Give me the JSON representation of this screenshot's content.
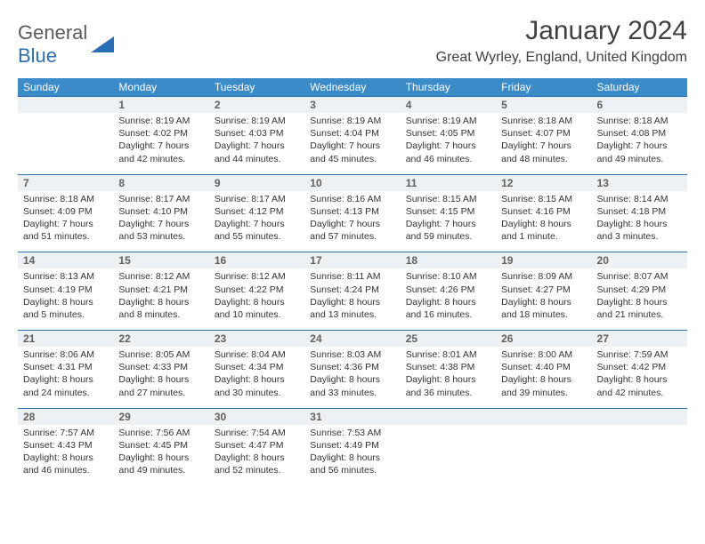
{
  "brand": {
    "part1": "General",
    "part2": "Blue"
  },
  "title": "January 2024",
  "location": "Great Wyrley, England, United Kingdom",
  "colors": {
    "header_bg": "#3b8bc9",
    "header_text": "#ffffff",
    "daynum_bg": "#eef1f3",
    "row_border": "#2a6fb5",
    "body_text": "#333333",
    "title_text": "#404040",
    "logo_gray": "#5a5a5a",
    "logo_blue": "#2a6fb5",
    "page_bg": "#ffffff"
  },
  "typography": {
    "month_title_fontsize": 30,
    "location_fontsize": 16,
    "weekday_fontsize": 12,
    "daynum_fontsize": 12,
    "cell_fontsize": 10.5
  },
  "weekdays": [
    "Sunday",
    "Monday",
    "Tuesday",
    "Wednesday",
    "Thursday",
    "Friday",
    "Saturday"
  ],
  "weeks": [
    [
      null,
      {
        "n": "1",
        "sr": "Sunrise: 8:19 AM",
        "ss": "Sunset: 4:02 PM",
        "d1": "Daylight: 7 hours",
        "d2": "and 42 minutes."
      },
      {
        "n": "2",
        "sr": "Sunrise: 8:19 AM",
        "ss": "Sunset: 4:03 PM",
        "d1": "Daylight: 7 hours",
        "d2": "and 44 minutes."
      },
      {
        "n": "3",
        "sr": "Sunrise: 8:19 AM",
        "ss": "Sunset: 4:04 PM",
        "d1": "Daylight: 7 hours",
        "d2": "and 45 minutes."
      },
      {
        "n": "4",
        "sr": "Sunrise: 8:19 AM",
        "ss": "Sunset: 4:05 PM",
        "d1": "Daylight: 7 hours",
        "d2": "and 46 minutes."
      },
      {
        "n": "5",
        "sr": "Sunrise: 8:18 AM",
        "ss": "Sunset: 4:07 PM",
        "d1": "Daylight: 7 hours",
        "d2": "and 48 minutes."
      },
      {
        "n": "6",
        "sr": "Sunrise: 8:18 AM",
        "ss": "Sunset: 4:08 PM",
        "d1": "Daylight: 7 hours",
        "d2": "and 49 minutes."
      }
    ],
    [
      {
        "n": "7",
        "sr": "Sunrise: 8:18 AM",
        "ss": "Sunset: 4:09 PM",
        "d1": "Daylight: 7 hours",
        "d2": "and 51 minutes."
      },
      {
        "n": "8",
        "sr": "Sunrise: 8:17 AM",
        "ss": "Sunset: 4:10 PM",
        "d1": "Daylight: 7 hours",
        "d2": "and 53 minutes."
      },
      {
        "n": "9",
        "sr": "Sunrise: 8:17 AM",
        "ss": "Sunset: 4:12 PM",
        "d1": "Daylight: 7 hours",
        "d2": "and 55 minutes."
      },
      {
        "n": "10",
        "sr": "Sunrise: 8:16 AM",
        "ss": "Sunset: 4:13 PM",
        "d1": "Daylight: 7 hours",
        "d2": "and 57 minutes."
      },
      {
        "n": "11",
        "sr": "Sunrise: 8:15 AM",
        "ss": "Sunset: 4:15 PM",
        "d1": "Daylight: 7 hours",
        "d2": "and 59 minutes."
      },
      {
        "n": "12",
        "sr": "Sunrise: 8:15 AM",
        "ss": "Sunset: 4:16 PM",
        "d1": "Daylight: 8 hours",
        "d2": "and 1 minute."
      },
      {
        "n": "13",
        "sr": "Sunrise: 8:14 AM",
        "ss": "Sunset: 4:18 PM",
        "d1": "Daylight: 8 hours",
        "d2": "and 3 minutes."
      }
    ],
    [
      {
        "n": "14",
        "sr": "Sunrise: 8:13 AM",
        "ss": "Sunset: 4:19 PM",
        "d1": "Daylight: 8 hours",
        "d2": "and 5 minutes."
      },
      {
        "n": "15",
        "sr": "Sunrise: 8:12 AM",
        "ss": "Sunset: 4:21 PM",
        "d1": "Daylight: 8 hours",
        "d2": "and 8 minutes."
      },
      {
        "n": "16",
        "sr": "Sunrise: 8:12 AM",
        "ss": "Sunset: 4:22 PM",
        "d1": "Daylight: 8 hours",
        "d2": "and 10 minutes."
      },
      {
        "n": "17",
        "sr": "Sunrise: 8:11 AM",
        "ss": "Sunset: 4:24 PM",
        "d1": "Daylight: 8 hours",
        "d2": "and 13 minutes."
      },
      {
        "n": "18",
        "sr": "Sunrise: 8:10 AM",
        "ss": "Sunset: 4:26 PM",
        "d1": "Daylight: 8 hours",
        "d2": "and 16 minutes."
      },
      {
        "n": "19",
        "sr": "Sunrise: 8:09 AM",
        "ss": "Sunset: 4:27 PM",
        "d1": "Daylight: 8 hours",
        "d2": "and 18 minutes."
      },
      {
        "n": "20",
        "sr": "Sunrise: 8:07 AM",
        "ss": "Sunset: 4:29 PM",
        "d1": "Daylight: 8 hours",
        "d2": "and 21 minutes."
      }
    ],
    [
      {
        "n": "21",
        "sr": "Sunrise: 8:06 AM",
        "ss": "Sunset: 4:31 PM",
        "d1": "Daylight: 8 hours",
        "d2": "and 24 minutes."
      },
      {
        "n": "22",
        "sr": "Sunrise: 8:05 AM",
        "ss": "Sunset: 4:33 PM",
        "d1": "Daylight: 8 hours",
        "d2": "and 27 minutes."
      },
      {
        "n": "23",
        "sr": "Sunrise: 8:04 AM",
        "ss": "Sunset: 4:34 PM",
        "d1": "Daylight: 8 hours",
        "d2": "and 30 minutes."
      },
      {
        "n": "24",
        "sr": "Sunrise: 8:03 AM",
        "ss": "Sunset: 4:36 PM",
        "d1": "Daylight: 8 hours",
        "d2": "and 33 minutes."
      },
      {
        "n": "25",
        "sr": "Sunrise: 8:01 AM",
        "ss": "Sunset: 4:38 PM",
        "d1": "Daylight: 8 hours",
        "d2": "and 36 minutes."
      },
      {
        "n": "26",
        "sr": "Sunrise: 8:00 AM",
        "ss": "Sunset: 4:40 PM",
        "d1": "Daylight: 8 hours",
        "d2": "and 39 minutes."
      },
      {
        "n": "27",
        "sr": "Sunrise: 7:59 AM",
        "ss": "Sunset: 4:42 PM",
        "d1": "Daylight: 8 hours",
        "d2": "and 42 minutes."
      }
    ],
    [
      {
        "n": "28",
        "sr": "Sunrise: 7:57 AM",
        "ss": "Sunset: 4:43 PM",
        "d1": "Daylight: 8 hours",
        "d2": "and 46 minutes."
      },
      {
        "n": "29",
        "sr": "Sunrise: 7:56 AM",
        "ss": "Sunset: 4:45 PM",
        "d1": "Daylight: 8 hours",
        "d2": "and 49 minutes."
      },
      {
        "n": "30",
        "sr": "Sunrise: 7:54 AM",
        "ss": "Sunset: 4:47 PM",
        "d1": "Daylight: 8 hours",
        "d2": "and 52 minutes."
      },
      {
        "n": "31",
        "sr": "Sunrise: 7:53 AM",
        "ss": "Sunset: 4:49 PM",
        "d1": "Daylight: 8 hours",
        "d2": "and 56 minutes."
      },
      null,
      null,
      null
    ]
  ]
}
